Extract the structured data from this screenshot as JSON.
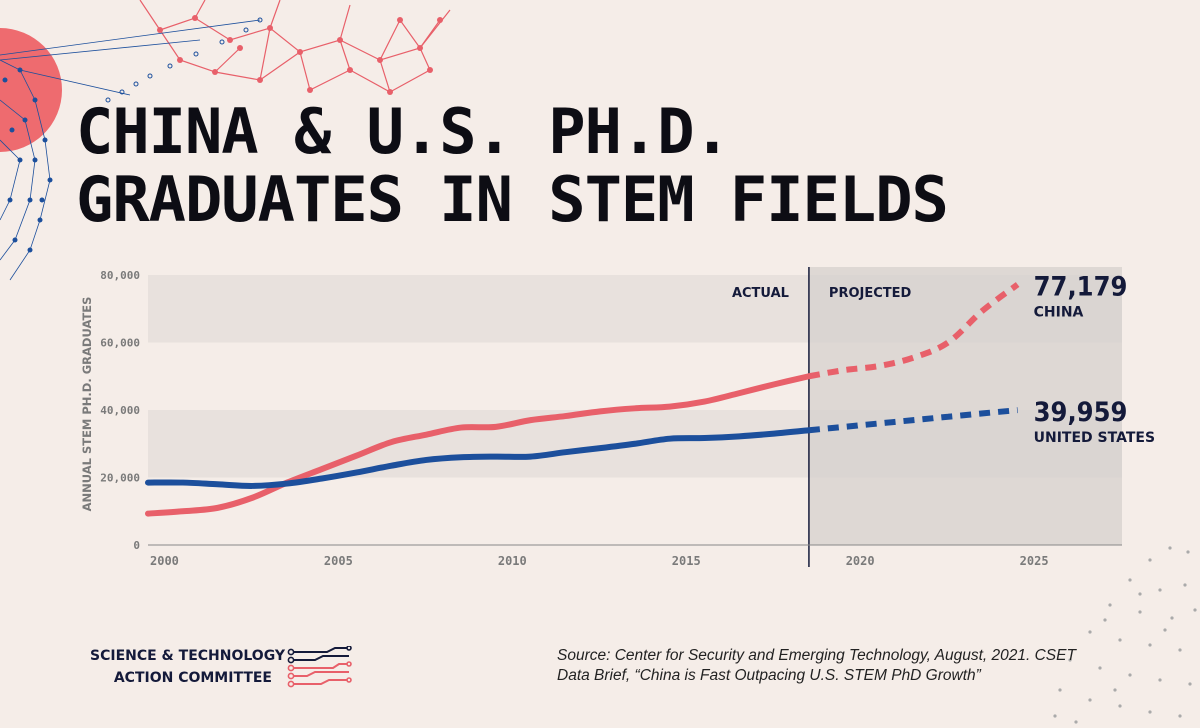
{
  "title": {
    "line1": "CHINA & U.S. PH.D.",
    "line2": "GRADUATES IN STEM FIELDS"
  },
  "colors": {
    "background": "#f5ede8",
    "china": "#e8606a",
    "us": "#1c4f9c",
    "title": "#0d0d14",
    "band": "#e8e1dd",
    "projected_area": "#d6d0cd"
  },
  "chart_data": {
    "type": "line",
    "title": "CHINA & U.S. PH.D. GRADUATES IN STEM FIELDS",
    "ylabel": "ANNUAL STEM PH.D. GRADUATES",
    "xlabel": "",
    "xlim": [
      2000,
      2028
    ],
    "ylim": [
      0,
      80000
    ],
    "x_ticks": [
      2000,
      2005,
      2010,
      2015,
      2020,
      2025
    ],
    "x_tick_labels": [
      "2000",
      "2005",
      "2010",
      "2015",
      "2020",
      "2025"
    ],
    "y_ticks": [
      0,
      20000,
      40000,
      60000,
      80000
    ],
    "y_tick_labels": [
      "0",
      "20,000",
      "40,000",
      "60,000",
      "80,000"
    ],
    "grid": "alternating horizontal bands",
    "divider_x": 2019,
    "section_labels": [
      "ACTUAL",
      "PROJECTED"
    ],
    "series": [
      {
        "name": "CHINA",
        "color": "#e8606a",
        "actual": {
          "x": [
            2000,
            2001,
            2002,
            2003,
            2004,
            2005,
            2006,
            2007,
            2008,
            2009,
            2010,
            2011,
            2012,
            2013,
            2014,
            2015,
            2016,
            2017,
            2018,
            2019
          ],
          "y": [
            9300,
            10000,
            11000,
            14000,
            18500,
            22500,
            26500,
            30500,
            32700,
            34800,
            35000,
            37000,
            38200,
            39600,
            40500,
            41000,
            42500,
            45000,
            47600,
            50000
          ]
        },
        "projected": {
          "x": [
            2019,
            2020,
            2021,
            2022,
            2023,
            2024,
            2025
          ],
          "y": [
            50000,
            51800,
            53000,
            55500,
            60000,
            69500,
            77179
          ]
        },
        "end_value_label": "77,179",
        "end_name_label": "CHINA"
      },
      {
        "name": "UNITED STATES",
        "color": "#1c4f9c",
        "actual": {
          "x": [
            2000,
            2001,
            2002,
            2003,
            2004,
            2005,
            2006,
            2007,
            2008,
            2009,
            2010,
            2011,
            2012,
            2013,
            2014,
            2015,
            2016,
            2017,
            2018,
            2019
          ],
          "y": [
            18500,
            18500,
            18000,
            17500,
            18200,
            19700,
            21500,
            23500,
            25200,
            26000,
            26200,
            26200,
            27500,
            28700,
            30000,
            31500,
            31700,
            32200,
            33000,
            34000
          ]
        },
        "projected": {
          "x": [
            2019,
            2020,
            2021,
            2022,
            2023,
            2024,
            2025
          ],
          "y": [
            34000,
            35000,
            36000,
            37000,
            38000,
            39000,
            39959
          ]
        },
        "end_value_label": "39,959",
        "end_name_label": "UNITED STATES"
      }
    ]
  },
  "footer": {
    "org_line1": "SCIENCE & TECHNOLOGY",
    "org_line2": "ACTION COMMITTEE",
    "source_line1": "Source: Center for Security and Emerging Technology, August, 2021. CSET",
    "source_line2": "Data Brief, “China is Fast Outpacing U.S. STEM PhD Growth”"
  }
}
